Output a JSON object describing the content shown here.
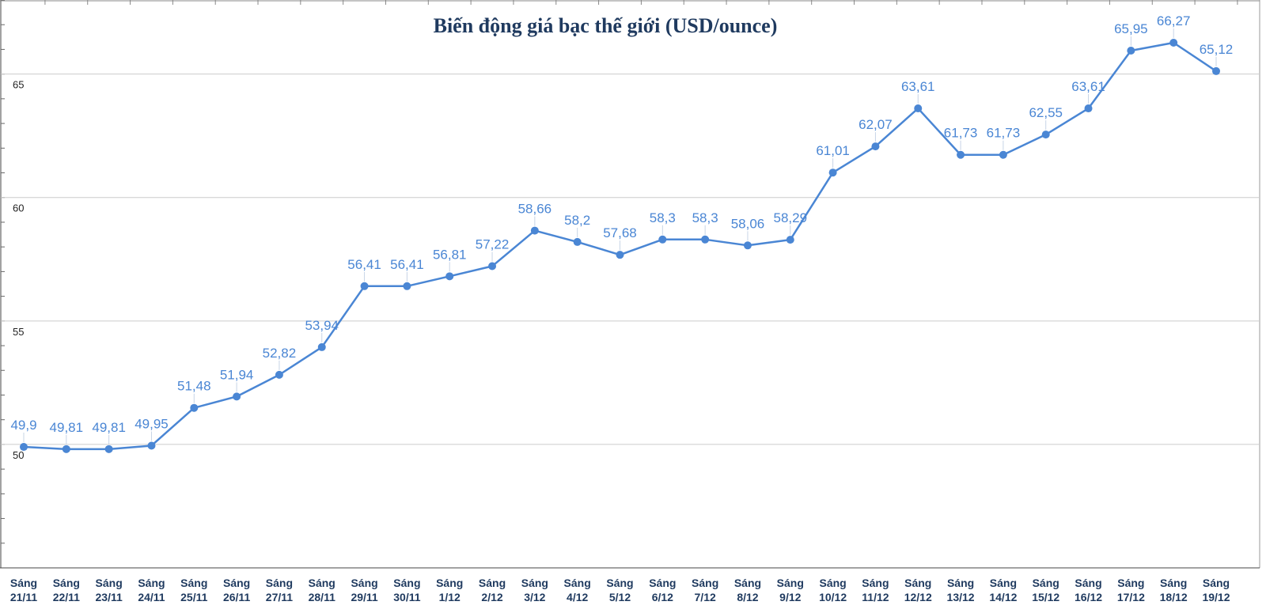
{
  "chart_data": {
    "type": "line",
    "title": "Biến động giá bạc thế giới (USD/ounce)",
    "xlabel": "",
    "ylabel": "",
    "ylim": [
      45,
      68
    ],
    "yticks": [
      50,
      55,
      60,
      65
    ],
    "grid": true,
    "legend": "none",
    "colors": {
      "line": "#4a86d4",
      "label": "#4a86d4",
      "title": "#1f3a5f",
      "xlabel": "#1f3a5f",
      "grid": "#cccccc"
    },
    "categories": [
      [
        "Sáng",
        "21/11"
      ],
      [
        "Sáng",
        "22/11"
      ],
      [
        "Sáng",
        "23/11"
      ],
      [
        "Sáng",
        "24/11"
      ],
      [
        "Sáng",
        "25/11"
      ],
      [
        "Sáng",
        "26/11"
      ],
      [
        "Sáng",
        "27/11"
      ],
      [
        "Sáng",
        "28/11"
      ],
      [
        "Sáng",
        "29/11"
      ],
      [
        "Sáng",
        "30/11"
      ],
      [
        "Sáng",
        "1/12"
      ],
      [
        "Sáng",
        "2/12"
      ],
      [
        "Sáng",
        "3/12"
      ],
      [
        "Sáng",
        "4/12"
      ],
      [
        "Sáng",
        "5/12"
      ],
      [
        "Sáng",
        "6/12"
      ],
      [
        "Sáng",
        "7/12"
      ],
      [
        "Sáng",
        "8/12"
      ],
      [
        "Sáng",
        "9/12"
      ],
      [
        "Sáng",
        "10/12"
      ],
      [
        "Sáng",
        "11/12"
      ],
      [
        "Sáng",
        "12/12"
      ],
      [
        "Sáng",
        "13/12"
      ],
      [
        "Sáng",
        "14/12"
      ],
      [
        "Sáng",
        "15/12"
      ],
      [
        "Sáng",
        "16/12"
      ],
      [
        "Sáng",
        "17/12"
      ],
      [
        "Sáng",
        "18/12"
      ],
      [
        "Sáng",
        "19/12"
      ]
    ],
    "values": [
      49.9,
      49.81,
      49.81,
      49.95,
      51.48,
      51.94,
      52.82,
      53.94,
      56.41,
      56.41,
      56.81,
      57.22,
      58.66,
      58.2,
      57.68,
      58.3,
      58.3,
      58.06,
      58.29,
      61.01,
      62.07,
      63.61,
      61.73,
      61.73,
      62.55,
      63.61,
      65.95,
      66.27,
      65.12
    ],
    "value_labels": [
      "49,9",
      "49,81",
      "49,81",
      "49,95",
      "51,48",
      "51,94",
      "52,82",
      "53,94",
      "56,41",
      "56,41",
      "56,81",
      "57,22",
      "58,66",
      "58,2",
      "57,68",
      "58,3",
      "58,3",
      "58,06",
      "58,29",
      "61,01",
      "62,07",
      "63,61",
      "61,73",
      "61,73",
      "62,55",
      "63,61",
      "65,95",
      "66,27",
      "65,12"
    ]
  }
}
